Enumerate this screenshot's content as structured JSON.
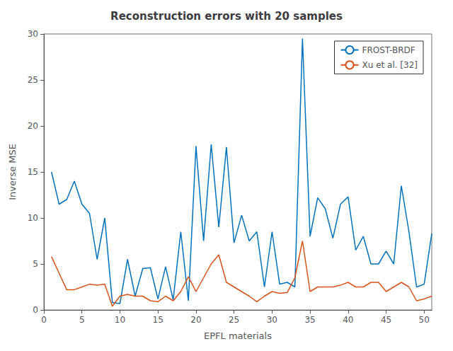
{
  "chart_data": {
    "type": "line",
    "title": "Reconstruction errors with 20 samples",
    "xlabel": "EPFL materials",
    "ylabel": "Inverse MSE",
    "x": [
      1,
      2,
      3,
      4,
      5,
      6,
      7,
      8,
      9,
      10,
      11,
      12,
      13,
      14,
      15,
      16,
      17,
      18,
      19,
      20,
      21,
      22,
      23,
      24,
      25,
      26,
      27,
      28,
      29,
      30,
      31,
      32,
      33,
      34,
      35,
      36,
      37,
      38,
      39,
      40,
      41,
      42,
      43,
      44,
      45,
      46,
      47,
      48,
      49,
      50,
      51
    ],
    "series": [
      {
        "name": "FROST-BRDF",
        "color": "#0072BD",
        "values": [
          15.0,
          11.5,
          12.0,
          14.0,
          11.5,
          10.5,
          5.5,
          10.0,
          0.8,
          0.7,
          5.5,
          1.5,
          4.5,
          4.6,
          1.2,
          4.7,
          1.1,
          8.5,
          1.0,
          17.8,
          7.5,
          18.0,
          9.0,
          17.7,
          7.3,
          10.3,
          7.5,
          8.5,
          2.5,
          8.5,
          2.8,
          3.0,
          2.5,
          29.5,
          8.0,
          12.2,
          11.0,
          7.8,
          11.5,
          12.3,
          6.5,
          8.0,
          5.0,
          5.0,
          6.4,
          5.0,
          13.5,
          8.5,
          2.5,
          2.8,
          8.3
        ]
      },
      {
        "name": "Xu et al. [32]",
        "color": "#D95319",
        "values": [
          5.8,
          4.0,
          2.2,
          2.2,
          2.5,
          2.8,
          2.7,
          2.8,
          0.4,
          1.5,
          1.7,
          1.5,
          1.5,
          1.0,
          0.9,
          1.5,
          1.0,
          2.0,
          3.6,
          2.0,
          3.5,
          5.0,
          6.0,
          3.0,
          2.5,
          2.0,
          1.5,
          0.9,
          1.5,
          2.0,
          1.8,
          1.9,
          3.5,
          7.5,
          2.0,
          2.5,
          2.5,
          2.5,
          2.7,
          3.0,
          2.5,
          2.5,
          3.0,
          3.0,
          2.0,
          2.5,
          3.0,
          2.5,
          1.0,
          1.2,
          1.5
        ]
      }
    ],
    "xlim": [
      0,
      51
    ],
    "ylim": [
      0,
      30
    ],
    "xticks": [
      0,
      5,
      10,
      15,
      20,
      25,
      30,
      35,
      40,
      45,
      50
    ],
    "yticks": [
      0,
      5,
      10,
      15,
      20,
      25,
      30
    ],
    "legend": "upper right",
    "grid": false
  }
}
